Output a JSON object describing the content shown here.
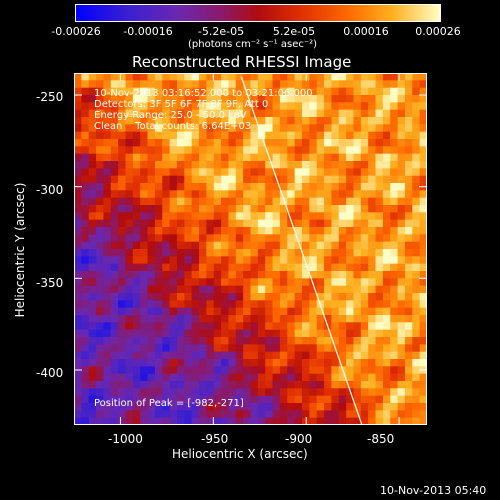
{
  "colorbar": {
    "ticks": [
      "-0.00026",
      "-0.00016",
      "-5.2e-05",
      "5.2e-05",
      "0.00016",
      "0.00026"
    ],
    "unit_text": "(photons cm⁻² s⁻¹ asec⁻²)"
  },
  "image": {
    "title": "Reconstructed RHESSI Image",
    "info_lines": [
      "10-Nov-2013 03:16:52.000 to 03:21:06.000",
      "Detectors: 3F 5F 6F 7F 8F 9F, Att 0",
      "Energy Range: 25.0 - 50.0 keV",
      "Clean    Total counts: 6.64E+03"
    ],
    "peak_text": "Position of Peak = [-982,-271]",
    "xlabel": "Heliocentric X (arcsec)",
    "ylabel": "Heliocentric Y (arcsec)",
    "x_ticks": [
      "-1000",
      "-950",
      "-900",
      "-850"
    ],
    "y_ticks": [
      "-250",
      "-300",
      "-350",
      "-400"
    ],
    "xlim": [
      -1025,
      -835
    ],
    "ylim": [
      -430,
      -238
    ],
    "limb_from": [
      -935,
      -240
    ],
    "limb_to": [
      -870,
      -430
    ]
  },
  "footer": {
    "timestamp": "10-Nov-2013 05:40"
  },
  "colors": {
    "background": "#000000",
    "foreground": "#ffffff"
  }
}
